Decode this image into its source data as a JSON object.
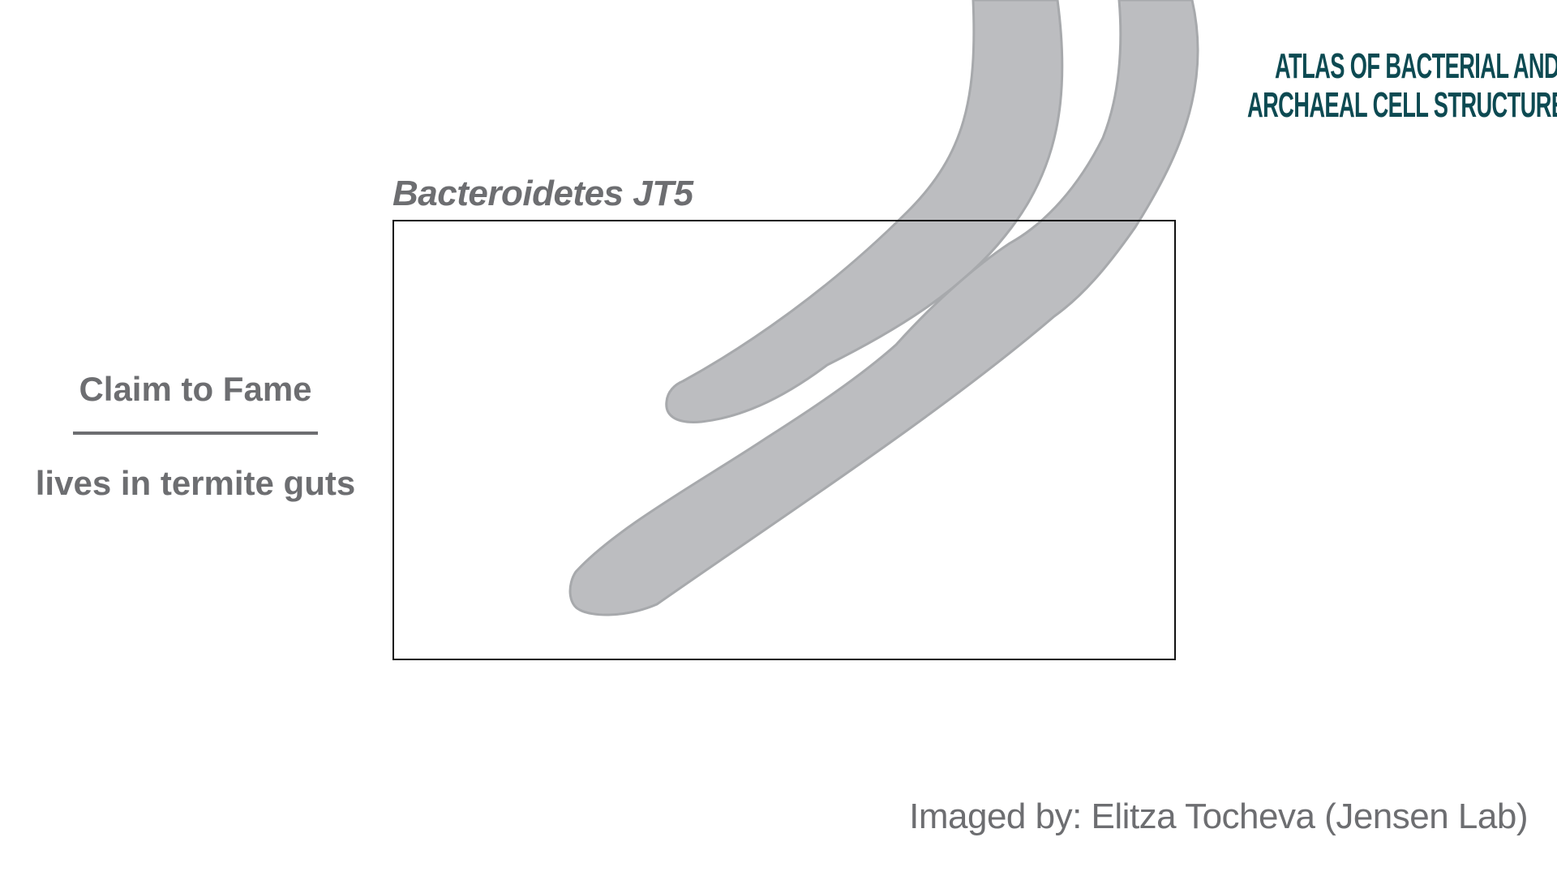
{
  "logo": {
    "line1": "ATLAS OF BACTERIAL AND",
    "line2": "ARCHAEAL CELL STRUCTURE"
  },
  "organism": {
    "name": "Bacteroidetes JT5"
  },
  "claim": {
    "heading": "Claim to Fame",
    "text": "lives in termite guts"
  },
  "credit": {
    "text": "Imaged by: Elitza Tocheva (Jensen Lab)"
  },
  "colors": {
    "cell_fill": "#bcbdc0",
    "cell_outline": "#a7a9ac",
    "text_gray": "#6d6e71",
    "logo_teal": "#0d4a52",
    "frame": "#111111"
  }
}
